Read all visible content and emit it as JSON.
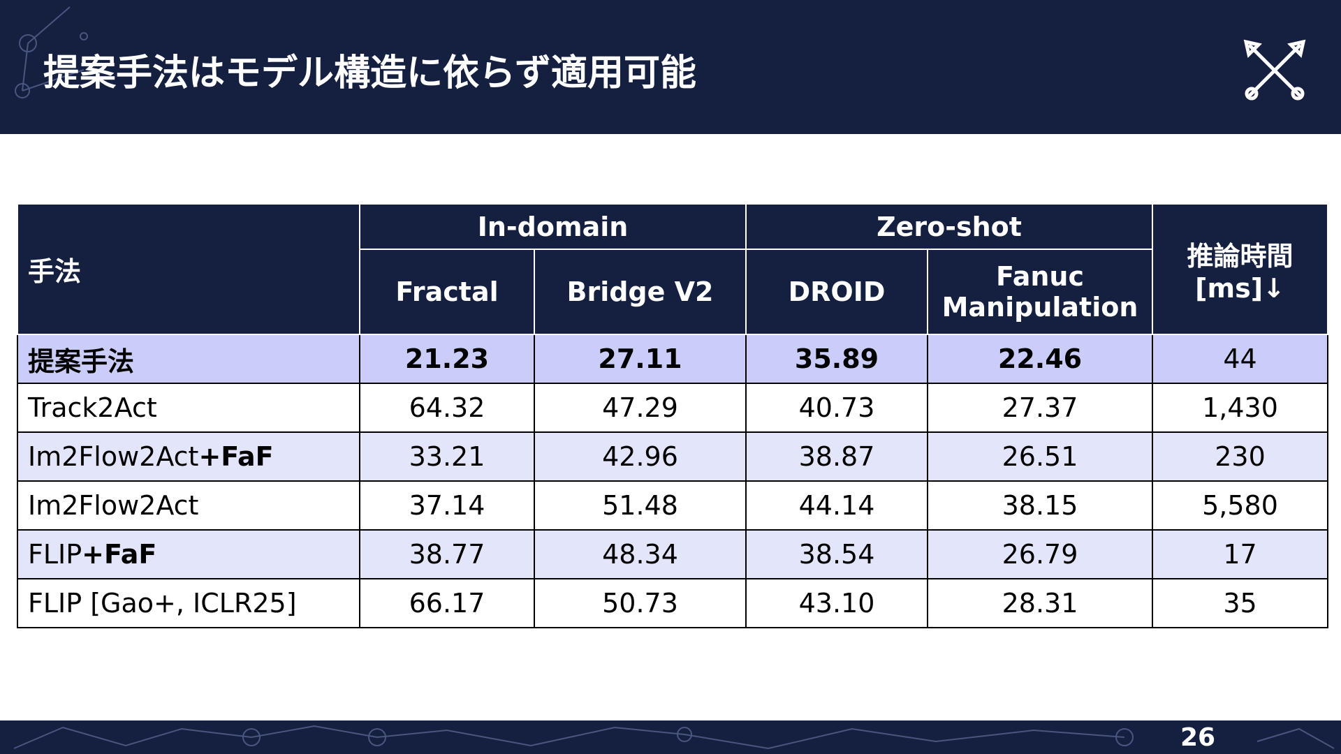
{
  "header": {
    "title": "提案手法はモデル構造に依らず適用可能"
  },
  "table": {
    "method_header": "手法",
    "groups": [
      "In-domain",
      "Zero-shot"
    ],
    "time_header": [
      "推論時間",
      "[ms]↓"
    ],
    "columns": [
      [
        "Fractal"
      ],
      [
        "Bridge V2"
      ],
      [
        "DROID"
      ],
      [
        "Fanuc",
        "Manipulation"
      ]
    ],
    "rows": [
      {
        "method": "提案手法",
        "suffix": null,
        "cells": [
          "21.23",
          "27.11",
          "35.89",
          "22.46",
          "44"
        ],
        "highlight": "primary"
      },
      {
        "method": "Track2Act",
        "suffix": null,
        "cells": [
          "64.32",
          "47.29",
          "40.73",
          "27.37",
          "1,430"
        ],
        "highlight": null
      },
      {
        "method": "Im2Flow2Act",
        "suffix": "+FaF",
        "cells": [
          "33.21",
          "42.96",
          "38.87",
          "26.51",
          "230"
        ],
        "highlight": "secondary"
      },
      {
        "method": "Im2Flow2Act",
        "suffix": null,
        "cells": [
          "37.14",
          "51.48",
          "44.14",
          "38.15",
          "5,580"
        ],
        "highlight": null
      },
      {
        "method": "FLIP",
        "suffix": "+FaF",
        "cells": [
          "38.77",
          "48.34",
          "38.54",
          "26.79",
          "17"
        ],
        "highlight": "secondary"
      },
      {
        "method": "FLIP [Gao+, ICLR25]",
        "suffix": null,
        "cells": [
          "66.17",
          "50.73",
          "43.10",
          "28.31",
          "35"
        ],
        "highlight": null
      }
    ]
  },
  "footer": {
    "page": "26"
  }
}
